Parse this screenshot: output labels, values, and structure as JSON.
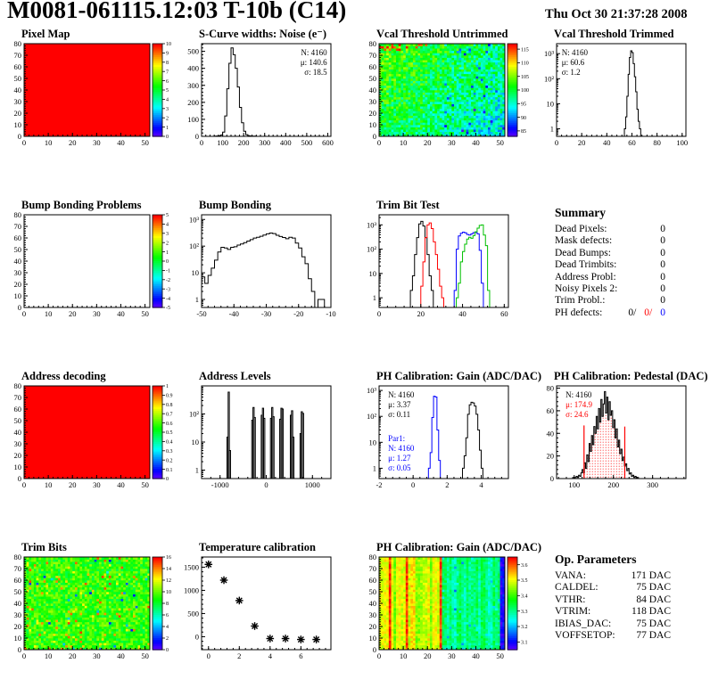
{
  "header": {
    "title": "M0081-061115.12:03 T-10b (C14)",
    "date": "Thu Oct 30 21:37:28 2008"
  },
  "summary": {
    "title": "Summary",
    "rows": [
      {
        "label": "Dead Pixels:",
        "value": "0"
      },
      {
        "label": "Mask defects:",
        "value": "0"
      },
      {
        "label": "Dead Bumps:",
        "value": "0"
      },
      {
        "label": "Dead Trimbits:",
        "value": "0"
      },
      {
        "label": "Address Probl:",
        "value": "0"
      },
      {
        "label": "Noisy Pixels 2:",
        "value": "0"
      },
      {
        "label": "Trim Probl.:",
        "value": "0"
      }
    ],
    "ph_defects": {
      "label": "PH defects:",
      "parts": [
        {
          "text": "0/",
          "color": "#000000"
        },
        {
          "text": "0/",
          "color": "#ff0000"
        },
        {
          "text": "0",
          "color": "#0000ff"
        }
      ]
    }
  },
  "op_parameters": {
    "title": "Op. Parameters",
    "rows": [
      {
        "label": "VANA:",
        "value": "171 DAC"
      },
      {
        "label": "CALDEL:",
        "value": "75 DAC"
      },
      {
        "label": "VTHR:",
        "value": "84 DAC"
      },
      {
        "label": "VTRIM:",
        "value": "118 DAC"
      },
      {
        "label": "IBIAS_DAC:",
        "value": "75 DAC"
      },
      {
        "label": "VOFFSETOP:",
        "value": "77 DAC"
      }
    ]
  },
  "chart_data": [
    {
      "title": "Pixel Map",
      "name": "pixel-map",
      "type": "heatmap",
      "variant": "solid",
      "fill": "#ff0000",
      "xlim": [
        0,
        52
      ],
      "xticks": [
        0,
        10,
        20,
        30,
        40,
        50
      ],
      "ylim": [
        0,
        80
      ],
      "yticks": [
        0,
        10,
        20,
        30,
        40,
        50,
        60,
        70,
        80
      ],
      "colorbar": {
        "min": 0,
        "max": 10,
        "ticks": [
          0,
          1,
          2,
          3,
          4,
          5,
          6,
          7,
          8,
          9,
          10
        ]
      }
    },
    {
      "title": "S-Curve widths: Noise (e⁻)",
      "name": "scurve-noise",
      "type": "histogram",
      "yscale": "linear",
      "xlim": [
        0,
        615
      ],
      "xticks": [
        0,
        100,
        200,
        300,
        400,
        500,
        600
      ],
      "ylim": [
        0,
        545
      ],
      "yticks": [
        0,
        100,
        200,
        300,
        400,
        500
      ],
      "series": [
        {
          "color": "#000000",
          "binStart": 60,
          "binWidth": 10,
          "values": [
            1,
            2,
            3,
            8,
            25,
            120,
            280,
            430,
            520,
            480,
            400,
            290,
            170,
            80,
            30,
            10,
            4,
            2,
            1,
            1
          ]
        }
      ],
      "stats": [
        {
          "x": 0.97,
          "y": 0.05,
          "align": "end",
          "lines": [
            {
              "text": "N: 4160",
              "color": "#000000"
            },
            {
              "text": "μ: 140.6",
              "color": "#000000"
            },
            {
              "text": "σ: 18.5",
              "color": "#000000"
            }
          ]
        }
      ]
    },
    {
      "title": "Vcal Threshold Untrimmed",
      "name": "vcal-threshold-untrimmed",
      "type": "heatmap",
      "variant": "noise",
      "noiseKind": "vcal",
      "xlim": [
        0,
        52
      ],
      "xticks": [
        0,
        10,
        20,
        30,
        40,
        50
      ],
      "ylim": [
        0,
        80
      ],
      "yticks": [
        0,
        10,
        20,
        30,
        40,
        50,
        60,
        70,
        80
      ],
      "colorbar": {
        "min": 83,
        "max": 117,
        "ticks": [
          85,
          90,
          95,
          100,
          105,
          110,
          115
        ]
      },
      "texture": {
        "base": 100,
        "xslope": -6,
        "yslope": 4,
        "spread": 10
      }
    },
    {
      "title": "Vcal Threshold Trimmed",
      "name": "vcal-threshold-trimmed",
      "type": "histogram",
      "yscale": "log",
      "xlim": [
        0,
        103
      ],
      "xticks": [
        0,
        20,
        40,
        60,
        80,
        100
      ],
      "ylim": [
        0.5,
        2500
      ],
      "yticks": [
        1,
        10,
        100,
        1000
      ],
      "ytickLabels": [
        "1",
        "10",
        "10²",
        "10³"
      ],
      "series": [
        {
          "color": "#000000",
          "binStart": 54,
          "binWidth": 1,
          "values": [
            1,
            3,
            20,
            150,
            700,
            1300,
            1100,
            400,
            120,
            30,
            6,
            2,
            1
          ]
        }
      ],
      "stats": [
        {
          "x": 0.04,
          "y": 0.05,
          "align": "start",
          "lines": [
            {
              "text": "N: 4160",
              "color": "#000000"
            },
            {
              "text": "μ: 60.6",
              "color": "#000000"
            },
            {
              "text": "σ:  1.2",
              "color": "#000000"
            }
          ]
        }
      ]
    },
    {
      "title": "Bump Bonding Problems",
      "name": "bump-bonding-problems",
      "type": "heatmap",
      "variant": "solid",
      "fill": "#ffffff",
      "xlim": [
        0,
        52
      ],
      "xticks": [
        0,
        10,
        20,
        30,
        40,
        50
      ],
      "ylim": [
        0,
        80
      ],
      "yticks": [
        0,
        10,
        20,
        30,
        40,
        50,
        60,
        70,
        80
      ],
      "colorbar": {
        "min": -5,
        "max": 5,
        "ticks": [
          -5,
          -4,
          -3,
          -2,
          -1,
          0,
          1,
          2,
          3,
          4,
          5
        ]
      }
    },
    {
      "title": "Bump Bonding",
      "name": "bump-bonding",
      "type": "histogram",
      "yscale": "log",
      "xlim": [
        -50,
        -10
      ],
      "xticks": [
        -50,
        -40,
        -30,
        -20,
        -10
      ],
      "ylim": [
        0.5,
        1500
      ],
      "yticks": [
        1,
        10,
        100,
        1000
      ],
      "ytickLabels": [
        "1",
        "10",
        "10²",
        "10³"
      ],
      "series": [
        {
          "color": "#000000",
          "binStart": -50,
          "binWidth": 1,
          "values": [
            7,
            4,
            8,
            15,
            30,
            60,
            90,
            85,
            75,
            90,
            95,
            110,
            120,
            135,
            155,
            175,
            200,
            215,
            235,
            260,
            290,
            310,
            295,
            255,
            230,
            210,
            190,
            215,
            200,
            130,
            85,
            40,
            22,
            6,
            2,
            0,
            1,
            1,
            0,
            0
          ]
        }
      ]
    },
    {
      "title": "Trim Bit Test",
      "name": "trim-bit-test",
      "type": "histogram",
      "yscale": "log",
      "fullBaseline": true,
      "xlim": [
        0,
        62
      ],
      "xticks": [
        0,
        20,
        40,
        60
      ],
      "ylim": [
        0.4,
        2600
      ],
      "yticks": [
        1,
        10,
        100,
        1000
      ],
      "ytickLabels": [
        "1",
        "10",
        "10²",
        "10³"
      ],
      "series": [
        {
          "color": "#000000",
          "binStart": 15,
          "binWidth": 1,
          "values": [
            2,
            8,
            60,
            300,
            1100,
            1400,
            900,
            300,
            60,
            8,
            2
          ]
        },
        {
          "color": "#ff0000",
          "binStart": 20,
          "binWidth": 1,
          "values": [
            3,
            30,
            300,
            1000,
            1200,
            700,
            200,
            60,
            15,
            3,
            1
          ]
        },
        {
          "color": "#0000ff",
          "binStart": 36,
          "binWidth": 1,
          "values": [
            2,
            100,
            350,
            450,
            500,
            470,
            400,
            380,
            430,
            480,
            490,
            430,
            90,
            4
          ]
        },
        {
          "color": "#00c000",
          "binStart": 37,
          "binWidth": 1,
          "values": [
            1,
            4,
            30,
            80,
            160,
            260,
            310,
            280,
            360,
            520,
            730,
            950,
            1000,
            380,
            140,
            2
          ]
        }
      ]
    },
    {
      "title": "Address decoding",
      "name": "address-decoding",
      "type": "heatmap",
      "variant": "solid",
      "fill": "#ff0000",
      "xlim": [
        0,
        52
      ],
      "xticks": [
        0,
        10,
        20,
        30,
        40,
        50
      ],
      "ylim": [
        0,
        80
      ],
      "yticks": [
        0,
        10,
        20,
        30,
        40,
        50,
        60,
        70,
        80
      ],
      "colorbar": {
        "min": 0,
        "max": 1,
        "ticks": [
          0,
          0.1,
          0.2,
          0.3,
          0.4,
          0.5,
          0.6,
          0.7,
          0.8,
          0.9,
          1
        ]
      }
    },
    {
      "title": "Address Levels",
      "name": "address-levels",
      "type": "bars",
      "yscale": "log",
      "xlim": [
        -1400,
        1400
      ],
      "xticks": [
        -1000,
        0,
        1000
      ],
      "ylim": [
        0.5,
        1000
      ],
      "yticks": [
        1,
        10,
        100
      ],
      "ytickLabels": [
        "1",
        "10",
        "10²"
      ],
      "bars": {
        "color": "#000000",
        "width": 26,
        "points": [
          [
            -838,
            15
          ],
          [
            -812,
            600
          ],
          [
            -786,
            5
          ],
          [
            -301,
            60
          ],
          [
            -275,
            170
          ],
          [
            -249,
            75
          ],
          [
            -96,
            90
          ],
          [
            -70,
            160
          ],
          [
            -44,
            70
          ],
          [
            104,
            70
          ],
          [
            130,
            170
          ],
          [
            156,
            80
          ],
          [
            304,
            65
          ],
          [
            330,
            160
          ],
          [
            356,
            150
          ],
          [
            534,
            90
          ],
          [
            560,
            130
          ],
          [
            586,
            15
          ],
          [
            744,
            20
          ],
          [
            770,
            120
          ],
          [
            796,
            105
          ]
        ]
      }
    },
    {
      "title": "PH Calibration: Gain (ADC/DAC)",
      "name": "ph-calibration-gain-hist",
      "type": "histogram",
      "yscale": "log",
      "fullBaseline": true,
      "xlim": [
        -2,
        5.6
      ],
      "xticks": [
        -2,
        0,
        2,
        4
      ],
      "ylim": [
        0.4,
        1500
      ],
      "yticks": [
        1,
        10,
        100,
        1000
      ],
      "ytickLabels": [
        "1",
        "10",
        "10²",
        "10³"
      ],
      "series": [
        {
          "color": "#000000",
          "binStart": 2.9,
          "binWidth": 0.1,
          "values": [
            1,
            3,
            15,
            120,
            280,
            350,
            330,
            250,
            120,
            30,
            5,
            1
          ]
        },
        {
          "color": "#0000ff",
          "binStart": 0.9,
          "binWidth": 0.1,
          "values": [
            1,
            4,
            90,
            600,
            560,
            30,
            2
          ]
        }
      ],
      "stats": [
        {
          "x": 0.07,
          "y": 0.05,
          "align": "start",
          "lines": [
            {
              "text": "N: 4160",
              "color": "#000000"
            },
            {
              "text": "μ: 3.37",
              "color": "#000000"
            },
            {
              "text": "σ: 0.11",
              "color": "#000000"
            }
          ]
        },
        {
          "x": 0.07,
          "y": 0.52,
          "align": "start",
          "lines": [
            {
              "text": "Par1:",
              "color": "#0000ff"
            },
            {
              "text": "N: 4160",
              "color": "#0000ff"
            },
            {
              "text": "μ: 1.27",
              "color": "#0000ff"
            },
            {
              "text": "σ: 0.05",
              "color": "#0000ff"
            }
          ]
        }
      ]
    },
    {
      "title": "PH Calibration: Pedestal (DAC)",
      "name": "ph-calibration-pedestal",
      "type": "histogram",
      "yscale": "linear",
      "xlim": [
        55,
        385
      ],
      "xticks": [
        100,
        200,
        300
      ],
      "ylim": [
        0,
        82
      ],
      "yticks": [
        0,
        20,
        40,
        60,
        80
      ],
      "series": [
        {
          "color": "#000000",
          "binStart": 96,
          "binWidth": 3,
          "fillFrom": 125,
          "fillTo": 229,
          "fillPattern": "reddots",
          "values": [
            1,
            0,
            1,
            2,
            1,
            3,
            2,
            5,
            8,
            5,
            14,
            9,
            21,
            15,
            31,
            24,
            38,
            30,
            46,
            40,
            55,
            44,
            62,
            50,
            70,
            55,
            66,
            77,
            58,
            72,
            52,
            68,
            56,
            60,
            45,
            52,
            36,
            44,
            28,
            34,
            22,
            26,
            16,
            19,
            11,
            13,
            7,
            9,
            4,
            5,
            2,
            3,
            1,
            2,
            0,
            1
          ]
        }
      ],
      "vlines": [
        {
          "x": 125,
          "h": 47,
          "color": "#ff0000"
        },
        {
          "x": 229,
          "h": 46,
          "color": "#ff0000"
        }
      ],
      "stats": [
        {
          "x": 0.07,
          "y": 0.05,
          "align": "start",
          "lines": [
            {
              "text": "N: 4160",
              "color": "#000000"
            },
            {
              "text": "μ: 174.9",
              "color": "#ff0000"
            },
            {
              "text": "σ: 24.6",
              "color": "#ff0000"
            }
          ]
        }
      ]
    },
    {
      "title": "Trim Bits",
      "name": "trim-bits",
      "type": "heatmap",
      "variant": "noise",
      "noiseKind": "trimbits",
      "xlim": [
        0,
        52
      ],
      "xticks": [
        0,
        10,
        20,
        30,
        40,
        50
      ],
      "ylim": [
        0,
        80
      ],
      "yticks": [
        0,
        10,
        20,
        30,
        40,
        50,
        60,
        70,
        80
      ],
      "colorbar": {
        "min": 0,
        "max": 16,
        "ticks": [
          0,
          2,
          4,
          6,
          8,
          10,
          12,
          14,
          16
        ]
      },
      "texture": {
        "base": 9.3,
        "spread": 3.4
      }
    },
    {
      "title": "Temperature calibration",
      "name": "temperature-calibration",
      "type": "scatter",
      "marker": "star",
      "color": "#000000",
      "xlim": [
        -0.45,
        7.95
      ],
      "xticks": [
        0,
        2,
        4,
        6
      ],
      "ylim": [
        -280,
        1720
      ],
      "yticks": [
        0,
        500,
        1000,
        1500
      ],
      "points": [
        [
          0,
          1560
        ],
        [
          1,
          1220
        ],
        [
          2,
          780
        ],
        [
          3,
          230
        ],
        [
          4,
          -40
        ],
        [
          5,
          -40
        ],
        [
          6,
          -60
        ],
        [
          7,
          -60
        ]
      ]
    },
    {
      "title": "PH Calibration: Gain (ADC/DAC)",
      "name": "ph-calibration-gain-map",
      "type": "heatmap",
      "variant": "noise",
      "noiseKind": "gainmap",
      "xlim": [
        0,
        52
      ],
      "xticks": [
        0,
        10,
        20,
        30,
        40,
        50
      ],
      "ylim": [
        0,
        80
      ],
      "yticks": [
        0,
        10,
        20,
        30,
        40,
        50,
        60,
        70,
        80
      ],
      "colorbar": {
        "min": 3.05,
        "max": 3.65,
        "ticks": [
          3.1,
          3.2,
          3.3,
          3.4,
          3.5,
          3.6
        ]
      },
      "texture": {
        "leftBase": 3.5,
        "rightBase": 3.31,
        "edgeBase": 3.09,
        "split": 26
      }
    }
  ]
}
